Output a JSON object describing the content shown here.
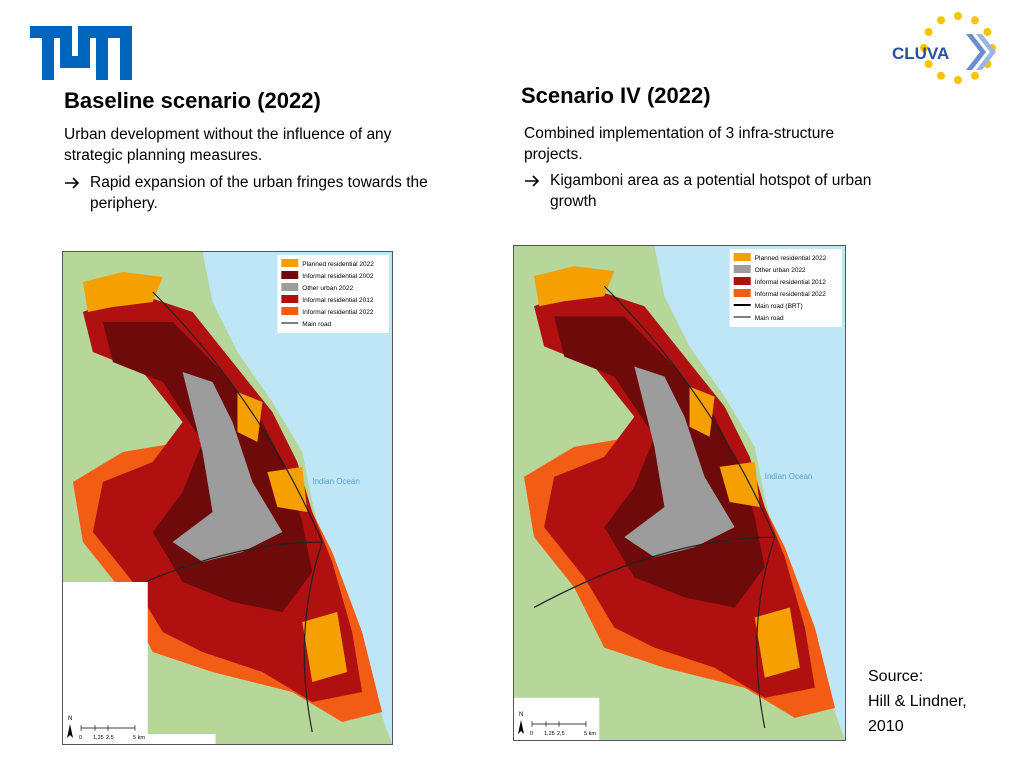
{
  "header": {
    "logo_right": "CLUVA"
  },
  "panels": [
    {
      "title": "Baseline scenario (2022)",
      "description": "Urban development without the influence of any strategic planning measures.",
      "bullet": "Rapid expansion of the urban fringes towards the periphery.",
      "map": {
        "legend": [
          {
            "label": "Planned residential 2022",
            "color": "#f5a000"
          },
          {
            "label": "Informal residential 2002",
            "color": "#6e0a0a"
          },
          {
            "label": "Other urban 2022",
            "color": "#9c9c9c"
          },
          {
            "label": "Informal residential 2012",
            "color": "#b01010"
          },
          {
            "label": "Informal residential 2022",
            "color": "#f25c14"
          },
          {
            "label": "Main road",
            "color": "#000000",
            "line": true
          }
        ],
        "ocean_label": "Indian Ocean",
        "north": "N",
        "scale_labels": [
          "0",
          "1,25",
          "2,5",
          "5 km"
        ]
      }
    },
    {
      "title": "Scenario IV (2022)",
      "description": "Combined  implementation of 3 infra-structure projects.",
      "bullet": "Kigamboni area as a potential hotspot of urban growth",
      "map": {
        "legend": [
          {
            "label": "Planned residential 2022",
            "color": "#f5a000"
          },
          {
            "label": "Other urban 2022",
            "color": "#9c9c9c"
          },
          {
            "label": "Informal residential 2012",
            "color": "#b01010"
          },
          {
            "label": "Informal residential 2022",
            "color": "#f25c14"
          },
          {
            "label": "Main road (BRT)",
            "color": "#000000",
            "line": true,
            "thick": true
          },
          {
            "label": "Main road",
            "color": "#000000",
            "line": true
          }
        ],
        "ocean_label": "Indian Ocean",
        "north": "N",
        "scale_labels": [
          "0",
          "1,25",
          "2,5",
          "5 km"
        ]
      }
    }
  ],
  "source": {
    "label": "Source:",
    "text": "Hill & Lindner, 2010"
  }
}
